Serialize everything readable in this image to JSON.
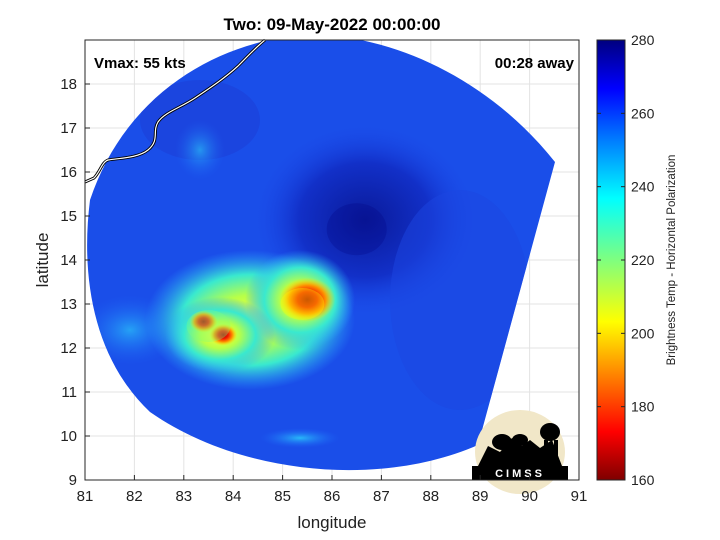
{
  "chart_data": {
    "type": "heatmap",
    "title": "Two: 09-May-2022 00:00:00",
    "xlabel": "longitude",
    "ylabel": "latitude",
    "xlim": [
      81,
      91
    ],
    "ylim": [
      9,
      19
    ],
    "xticks": [
      "81",
      "82",
      "83",
      "84",
      "85",
      "86",
      "87",
      "88",
      "89",
      "90",
      "91"
    ],
    "yticks": [
      "9",
      "10",
      "11",
      "12",
      "13",
      "14",
      "15",
      "16",
      "17",
      "18"
    ],
    "grid": true,
    "annotations": {
      "top_left": "Vmax: 55 kts",
      "top_right": "00:28 away"
    },
    "colorbar": {
      "label": "Brightness Temp - Horizontal Polarization",
      "min": 160,
      "max": 280,
      "ticks": [
        "160",
        "180",
        "200",
        "220",
        "240",
        "260",
        "280"
      ],
      "colormap": "jet"
    },
    "cold_features": [
      {
        "name": "core-cell-east",
        "lon": 85.5,
        "lat": 13.1,
        "temp": 180
      },
      {
        "name": "core-cell-west",
        "lon": 83.4,
        "lat": 12.6,
        "temp": 185
      },
      {
        "name": "cell-west-south",
        "lon": 83.8,
        "lat": 12.3,
        "temp": 185
      },
      {
        "name": "rainband-west",
        "lon": 83.5,
        "lat": 12.5,
        "temp": 215
      },
      {
        "name": "rainband-east",
        "lon": 85.4,
        "lat": 13.0,
        "temp": 210
      },
      {
        "name": "eye-region",
        "lon": 86.5,
        "lat": 14.7,
        "temp": 273
      }
    ],
    "logo_text": "CIMSS"
  },
  "colors": {
    "jet": [
      "#00007f",
      "#0000ff",
      "#007fff",
      "#00ffff",
      "#7fff7f",
      "#ffff00",
      "#ff7f00",
      "#ff0000",
      "#7f0000"
    ]
  }
}
